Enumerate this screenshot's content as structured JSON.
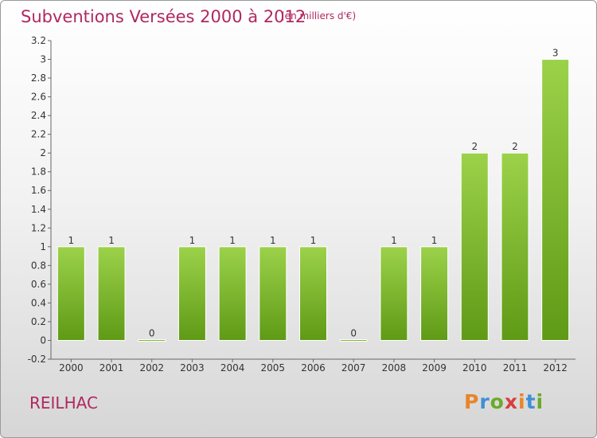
{
  "title": "Subventions Versées 2000 à 2012",
  "unit": "(en milliers d'€)",
  "commune": "REILHAC",
  "logo": "Proxiti",
  "logo_colors": [
    "#e8852a",
    "#3f8fd6",
    "#6aaa2a",
    "#d63f3f",
    "#e8852a",
    "#3f8fd6",
    "#6aaa2a"
  ],
  "colors": {
    "bar_top": "#9cd24a",
    "bar_bottom": "#5f9a16",
    "text_accent": "#b0285f"
  },
  "chart_data": {
    "type": "bar",
    "title": "Subventions Versées 2000 à 2012",
    "xlabel": "",
    "ylabel": "",
    "categories": [
      "2000",
      "2001",
      "2002",
      "2003",
      "2004",
      "2005",
      "2006",
      "2007",
      "2008",
      "2009",
      "2010",
      "2011",
      "2012"
    ],
    "values": [
      1,
      1,
      0,
      1,
      1,
      1,
      1,
      0,
      1,
      1,
      2,
      2,
      3
    ],
    "value_labels": [
      "1",
      "1",
      "0",
      "1",
      "1",
      "1",
      "1",
      "0",
      "1",
      "1",
      "2",
      "2",
      "3"
    ],
    "ylim": [
      -0.2,
      3.2
    ],
    "yticks": [
      -0.2,
      0,
      0.2,
      0.4,
      0.6,
      0.8,
      1,
      1.2,
      1.4,
      1.6,
      1.8,
      2,
      2.2,
      2.4,
      2.6,
      2.8,
      3,
      3.2
    ],
    "ytick_labels": [
      "-0.2",
      "0",
      "0.2",
      "0.4",
      "0.6",
      "0.8",
      "1",
      "1.2",
      "1.4",
      "1.6",
      "1.8",
      "2",
      "2.2",
      "2.4",
      "2.6",
      "2.8",
      "3",
      "3.2"
    ],
    "grid": false,
    "legend": "none"
  }
}
